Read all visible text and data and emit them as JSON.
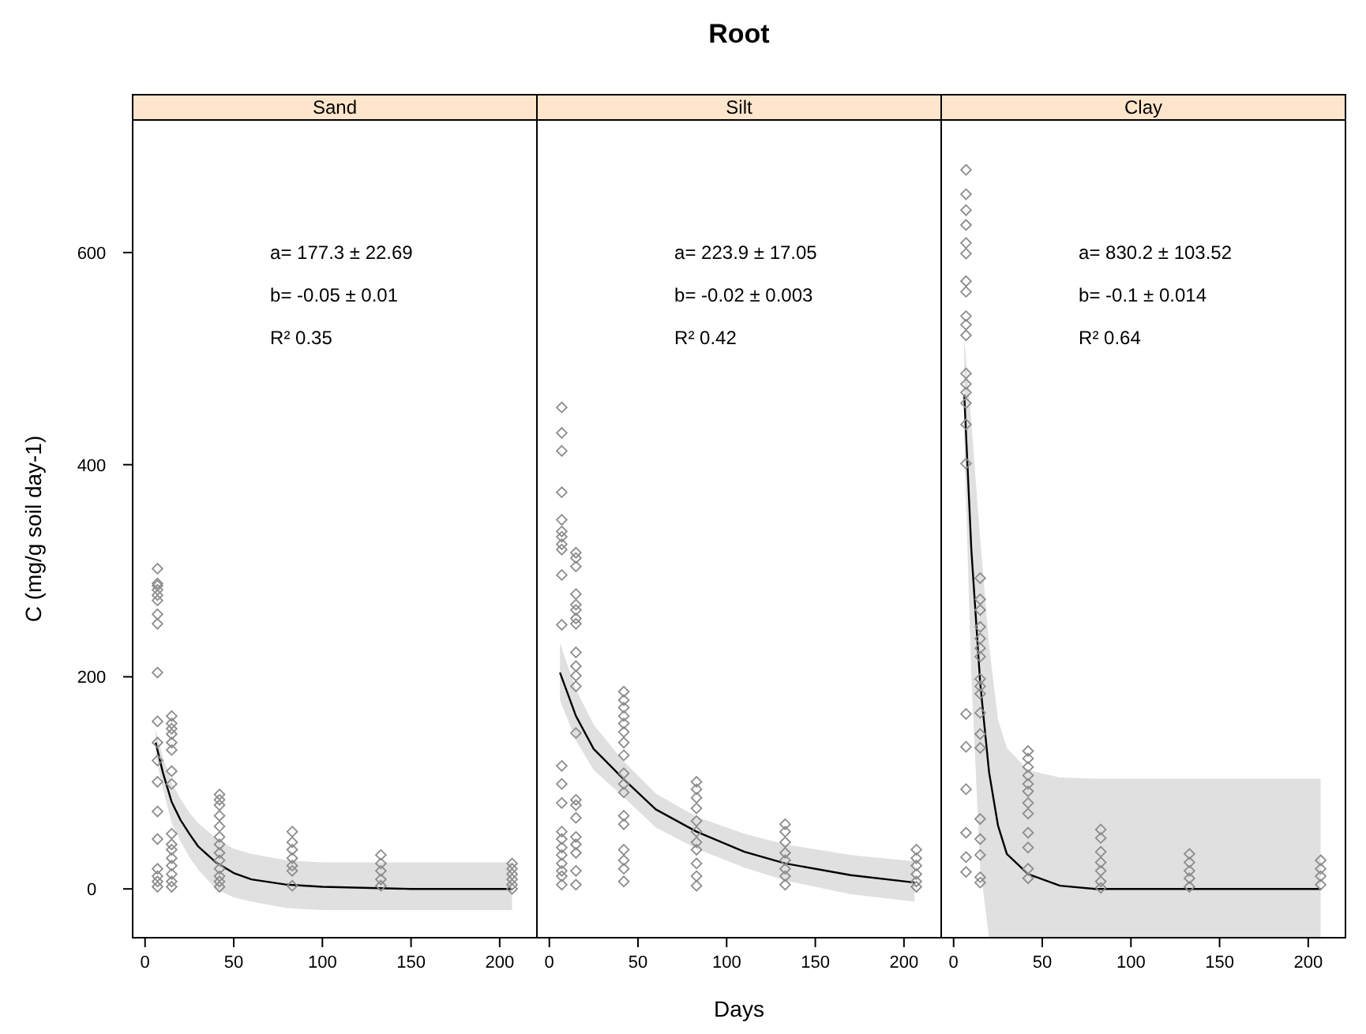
{
  "chart_data": [
    {
      "type": "scatter",
      "title": "Sand",
      "ylabel": "C (mg/g soil day-1)",
      "xlim": [
        -7,
        221
      ],
      "xticks": [
        0,
        50,
        100,
        150,
        200
      ],
      "ylim": [
        -46,
        725
      ],
      "yticks": [
        0,
        200,
        400,
        600
      ],
      "grid": false,
      "marker": "diamond",
      "annotations": [
        "a= 177.3 ± 22.69",
        "b= -0.05 ± 0.01",
        "R² 0.35"
      ],
      "series": [
        {
          "color": "#8c8c8c",
          "x": [
            7,
            7,
            7,
            7,
            7,
            7,
            7,
            7,
            7,
            7,
            7,
            7,
            7,
            7,
            7,
            7,
            7,
            7,
            7,
            15,
            15,
            15,
            15,
            15,
            15,
            15,
            15,
            15,
            15,
            15,
            15,
            15,
            15,
            15,
            15,
            42,
            42,
            42,
            42,
            42,
            42,
            42,
            42,
            42,
            42,
            42,
            42,
            42,
            83,
            83,
            83,
            83,
            83,
            83,
            83,
            133,
            133,
            133,
            133,
            133,
            207,
            207,
            207,
            207,
            207,
            207
          ],
          "values": [
            302,
            288,
            286,
            282,
            277,
            272,
            259,
            250,
            204,
            158,
            138,
            121,
            101,
            73,
            47,
            19,
            12,
            7,
            2,
            163,
            156,
            151,
            146,
            138,
            131,
            111,
            99,
            52,
            42,
            37,
            29,
            22,
            14,
            7,
            2,
            89,
            84,
            79,
            69,
            59,
            49,
            42,
            34,
            27,
            19,
            12,
            7,
            2,
            54,
            44,
            37,
            29,
            22,
            17,
            3,
            32,
            24,
            17,
            9,
            3,
            24,
            19,
            14,
            9,
            4,
            0
          ]
        },
        {
          "type": "line",
          "color": "#000000",
          "line_style": "solid",
          "marker": "none",
          "x": [
            6,
            10,
            15,
            20,
            25,
            30,
            40,
            50,
            60,
            80,
            100,
            150,
            207
          ],
          "values": [
            138,
            110,
            82,
            65,
            52,
            40,
            25,
            15,
            9,
            4,
            2,
            0,
            0
          ],
          "lower": [
            125,
            95,
            62,
            45,
            30,
            18,
            0,
            -8,
            -12,
            -18,
            -20,
            -20,
            -20
          ],
          "upper": [
            150,
            125,
            100,
            85,
            72,
            62,
            48,
            38,
            33,
            27,
            25,
            25,
            25
          ]
        }
      ]
    },
    {
      "type": "scatter",
      "title": "Silt",
      "subtitle": "Root",
      "xlabel": "Days",
      "xlim": [
        -7,
        221
      ],
      "xticks": [
        0,
        50,
        100,
        150,
        200
      ],
      "ylim": [
        -46,
        725
      ],
      "tick_labels": "x",
      "grid": false,
      "marker": "diamond",
      "annotations": [
        "a= 223.9 ± 17.05",
        "b= -0.02 ± 0.003",
        "R² 0.42"
      ],
      "series": [
        {
          "color": "#8c8c8c",
          "x": [
            7,
            7,
            7,
            7,
            7,
            7,
            7,
            7,
            7,
            7,
            7,
            7,
            7,
            7,
            7,
            7,
            7,
            7,
            7,
            7,
            7,
            7,
            15,
            15,
            15,
            15,
            15,
            15,
            15,
            15,
            15,
            15,
            15,
            15,
            15,
            15,
            15,
            15,
            15,
            15,
            15,
            15,
            15,
            42,
            42,
            42,
            42,
            42,
            42,
            42,
            42,
            42,
            42,
            42,
            42,
            42,
            42,
            42,
            42,
            42,
            83,
            83,
            83,
            83,
            83,
            83,
            83,
            83,
            83,
            83,
            83,
            133,
            133,
            133,
            133,
            133,
            133,
            133,
            133,
            207,
            207,
            207,
            207,
            207,
            207
          ],
          "values": [
            454,
            430,
            413,
            374,
            348,
            337,
            332,
            325,
            320,
            296,
            249,
            116,
            99,
            81,
            54,
            47,
            39,
            32,
            24,
            17,
            12,
            4,
            317,
            312,
            304,
            278,
            268,
            263,
            255,
            250,
            223,
            210,
            201,
            191,
            147,
            84,
            79,
            67,
            49,
            42,
            34,
            17,
            4,
            186,
            178,
            171,
            163,
            156,
            148,
            138,
            126,
            109,
            99,
            91,
            69,
            61,
            37,
            27,
            19,
            7,
            101,
            94,
            86,
            76,
            64,
            54,
            44,
            37,
            24,
            12,
            3,
            61,
            54,
            44,
            34,
            27,
            19,
            12,
            4,
            37,
            29,
            22,
            14,
            7,
            2
          ]
        },
        {
          "type": "line",
          "color": "#000000",
          "line_style": "solid",
          "marker": "none",
          "x": [
            6,
            15,
            25,
            41,
            60,
            83,
            110,
            133,
            170,
            206
          ],
          "values": [
            204,
            163,
            132,
            105,
            75,
            54,
            35,
            24,
            13,
            6
          ],
          "lower": [
            178,
            140,
            112,
            88,
            58,
            38,
            20,
            8,
            -5,
            -12
          ],
          "upper": [
            232,
            188,
            155,
            122,
            90,
            68,
            52,
            42,
            32,
            26
          ]
        }
      ]
    },
    {
      "type": "scatter",
      "title": "Clay",
      "xlim": [
        -7,
        221
      ],
      "xticks": [
        0,
        50,
        100,
        150,
        200
      ],
      "ylim": [
        -46,
        725
      ],
      "tick_labels": "x",
      "grid": false,
      "marker": "diamond",
      "annotations": [
        "a= 830.2 ± 103.52",
        "b= -0.1 ± 0.014",
        "R² 0.64"
      ],
      "series": [
        {
          "color": "#8c8c8c",
          "x": [
            7,
            7,
            7,
            7,
            7,
            7,
            7,
            7,
            7,
            7,
            7,
            7,
            7,
            7,
            7,
            7,
            7,
            7,
            7,
            7,
            7,
            7,
            7,
            15,
            15,
            15,
            15,
            15,
            15,
            15,
            15,
            15,
            15,
            15,
            15,
            15,
            15,
            15,
            15,
            15,
            15,
            42,
            42,
            42,
            42,
            42,
            42,
            42,
            42,
            42,
            42,
            42,
            42,
            83,
            83,
            83,
            83,
            83,
            83,
            83,
            133,
            133,
            133,
            133,
            133,
            207,
            207,
            207,
            207
          ],
          "values": [
            678,
            655,
            640,
            626,
            609,
            599,
            573,
            563,
            540,
            532,
            522,
            486,
            476,
            468,
            458,
            438,
            401,
            165,
            134,
            94,
            53,
            30,
            16,
            293,
            273,
            263,
            247,
            236,
            227,
            219,
            198,
            191,
            184,
            166,
            146,
            133,
            66,
            47,
            32,
            11,
            6,
            130,
            123,
            115,
            107,
            99,
            92,
            81,
            71,
            53,
            39,
            19,
            10,
            56,
            48,
            35,
            25,
            17,
            7,
            1,
            33,
            25,
            17,
            10,
            2,
            27,
            19,
            12,
            4
          ]
        },
        {
          "type": "line",
          "color": "#000000",
          "line_style": "solid",
          "marker": "none",
          "x": [
            6,
            10,
            15,
            20,
            25,
            30,
            42,
            60,
            80,
            133,
            207
          ],
          "values": [
            466,
            320,
            194,
            110,
            60,
            33,
            14,
            3,
            0,
            0,
            0
          ],
          "lower": [
            420,
            200,
            20,
            -46,
            -46,
            -46,
            -46,
            -46,
            -46,
            -46,
            -46
          ],
          "upper": [
            520,
            440,
            330,
            230,
            160,
            133,
            112,
            105,
            104,
            104,
            104
          ]
        }
      ]
    }
  ]
}
